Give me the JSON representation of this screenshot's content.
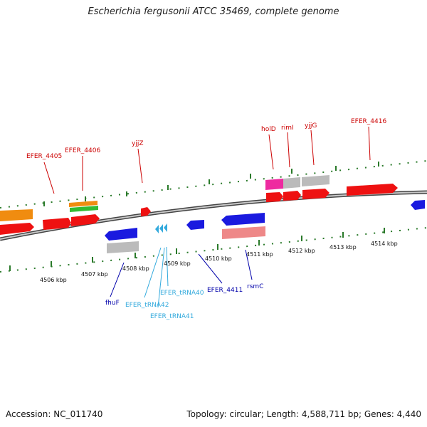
{
  "title": "Escherichia fergusonii ATCC 35469, complete genome",
  "footer": {
    "accession": "Accession: NC_011740",
    "summary": "Topology: circular; Length: 4,588,711 bp; Genes: 4,440"
  },
  "scale_labels": [
    "4506 kbp",
    "4507 kbp",
    "4508 kbp",
    "4509 kbp",
    "4510 kbp",
    "4511 kbp",
    "4512 kbp",
    "4513 kbp",
    "4514 kbp"
  ],
  "top_labels": [
    "EFER_4405",
    "EFER_4406",
    "yjjZ",
    "holD",
    "rimI",
    "yjjG",
    "EFER_4416"
  ],
  "bottom_labels": [
    "fhuF",
    "EFER_tRNA42",
    "EFER_tRNA40",
    "EFER_tRNA41",
    "EFER_4411",
    "rsmC"
  ],
  "colors": {
    "forward_label": "#cc0000",
    "reverse_label": "#0000aa",
    "trna_label": "#33aadd",
    "gene_red": "#ee1111",
    "gene_blue": "#1a1adf",
    "gene_orange": "#f08c10",
    "gene_green": "#33bb33",
    "gene_gray": "#bbbbbb",
    "gene_pink": "#ee2aa0",
    "gene_salmon": "#ee8888",
    "tick_green": "#2a7a2a",
    "backbone": "#888888"
  }
}
